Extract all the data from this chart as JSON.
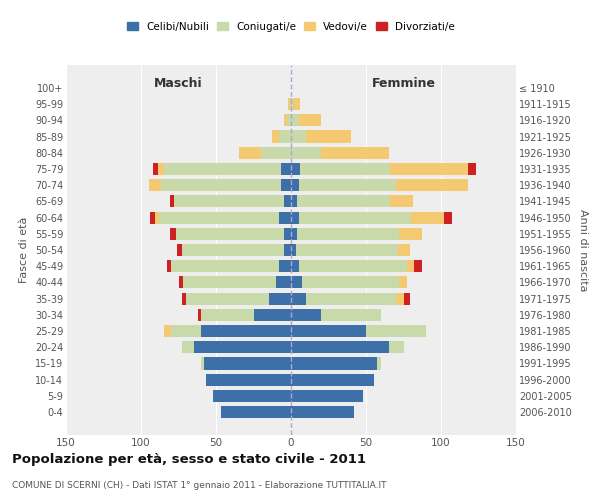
{
  "age_groups": [
    "0-4",
    "5-9",
    "10-14",
    "15-19",
    "20-24",
    "25-29",
    "30-34",
    "35-39",
    "40-44",
    "45-49",
    "50-54",
    "55-59",
    "60-64",
    "65-69",
    "70-74",
    "75-79",
    "80-84",
    "85-89",
    "90-94",
    "95-99",
    "100+"
  ],
  "birth_years": [
    "2006-2010",
    "2001-2005",
    "1996-2000",
    "1991-1995",
    "1986-1990",
    "1981-1985",
    "1976-1980",
    "1971-1975",
    "1966-1970",
    "1961-1965",
    "1956-1960",
    "1951-1955",
    "1946-1950",
    "1941-1945",
    "1936-1940",
    "1931-1935",
    "1926-1930",
    "1921-1925",
    "1916-1920",
    "1911-1915",
    "≤ 1910"
  ],
  "maschi": {
    "celibi": [
      47,
      52,
      57,
      58,
      65,
      60,
      25,
      15,
      10,
      8,
      5,
      5,
      8,
      5,
      7,
      7,
      0,
      0,
      0,
      0,
      0
    ],
    "coniugati": [
      0,
      0,
      0,
      2,
      8,
      20,
      35,
      55,
      62,
      72,
      68,
      72,
      80,
      73,
      80,
      78,
      20,
      8,
      3,
      1,
      0
    ],
    "vedovi": [
      0,
      0,
      0,
      0,
      0,
      5,
      0,
      0,
      0,
      0,
      0,
      0,
      3,
      0,
      8,
      4,
      15,
      5,
      2,
      1,
      0
    ],
    "divorziati": [
      0,
      0,
      0,
      0,
      0,
      0,
      2,
      3,
      3,
      3,
      3,
      4,
      3,
      3,
      0,
      3,
      0,
      0,
      0,
      0,
      0
    ]
  },
  "femmine": {
    "nubili": [
      42,
      48,
      55,
      57,
      65,
      50,
      20,
      10,
      7,
      5,
      3,
      4,
      5,
      4,
      5,
      6,
      0,
      0,
      0,
      0,
      0
    ],
    "coniugate": [
      0,
      0,
      0,
      3,
      10,
      40,
      40,
      60,
      65,
      72,
      68,
      68,
      75,
      62,
      65,
      60,
      20,
      10,
      5,
      1,
      0
    ],
    "vedove": [
      0,
      0,
      0,
      0,
      0,
      0,
      0,
      5,
      5,
      5,
      8,
      15,
      22,
      15,
      48,
      52,
      45,
      30,
      15,
      5,
      0
    ],
    "divorziate": [
      0,
      0,
      0,
      0,
      0,
      0,
      0,
      4,
      0,
      5,
      0,
      0,
      5,
      0,
      0,
      5,
      0,
      0,
      0,
      0,
      0
    ]
  },
  "colors": {
    "celibi_nubili": "#3d6fa8",
    "coniugati_e": "#c8d9aa",
    "vedovi_e": "#f5c972",
    "divorziati_e": "#cc2222"
  },
  "xlim": 150,
  "title": "Popolazione per età, sesso e stato civile - 2011",
  "subtitle": "COMUNE DI SCERNI (CH) - Dati ISTAT 1° gennaio 2011 - Elaborazione TUTTITALIA.IT",
  "ylabel_left": "Fasce di età",
  "ylabel_right": "Anni di nascita",
  "xlabel_left": "Maschi",
  "xlabel_right": "Femmine",
  "legend_labels": [
    "Celibi/Nubili",
    "Coniugati/e",
    "Vedovi/e",
    "Divorziati/e"
  ],
  "background_color": "#ffffff",
  "bar_height": 0.75
}
